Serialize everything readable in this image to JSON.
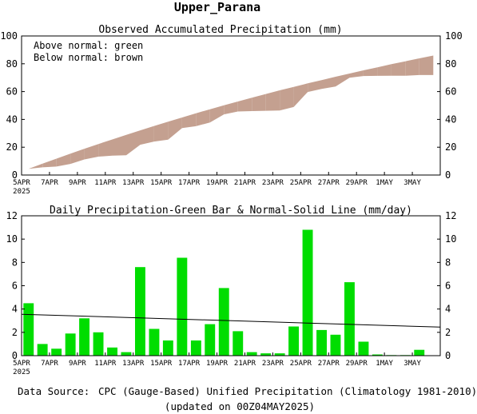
{
  "main_title": "Upper_Parana",
  "footer": {
    "source_label": "Data Source:",
    "source_text": "CPC (Gauge-Based) Unified Precipitation (Climatology 1981-2010)",
    "updated": "(updated on 00Z04MAY2025)"
  },
  "colors": {
    "above": "#00c000",
    "below": "#c4a090",
    "bar": "#00dd00",
    "source_label": "#e02020"
  },
  "chart_data": [
    {
      "type": "area",
      "title": "Observed Accumulated Precipitation (mm)",
      "legend": [
        "Above normal: green",
        "Below normal: brown"
      ],
      "ylim": [
        0,
        100
      ],
      "yticks": [
        0,
        20,
        40,
        60,
        80,
        100
      ],
      "xtick_labels": [
        "5APR",
        "7APR",
        "9APR",
        "11APR",
        "13APR",
        "15APR",
        "17APR",
        "19APR",
        "21APR",
        "23APR",
        "25APR",
        "27APR",
        "29APR",
        "1MAY",
        "3MAY"
      ],
      "xtick_sublabel": "2025",
      "series": [
        {
          "name": "observed",
          "values": [
            4.5,
            5.5,
            6.1,
            8.0,
            11.2,
            13.2,
            13.9,
            14.2,
            21.8,
            24.1,
            25.4,
            33.8,
            35.1,
            37.8,
            43.6,
            45.7,
            46.0,
            46.2,
            46.4,
            48.9,
            59.7,
            61.9,
            63.7,
            70.0,
            71.2,
            71.3,
            71.4,
            71.4,
            71.9,
            71.9
          ]
        },
        {
          "name": "normal",
          "values": [
            4.5,
            8.2,
            11.8,
            15.4,
            18.9,
            22.3,
            25.6,
            28.9,
            32.1,
            35.3,
            38.4,
            41.4,
            44.4,
            47.3,
            50.1,
            52.9,
            55.6,
            58.3,
            60.9,
            63.4,
            65.9,
            68.3,
            70.7,
            73.0,
            75.3,
            77.5,
            79.7,
            81.8,
            83.9,
            85.9
          ]
        }
      ]
    },
    {
      "type": "bar",
      "title": "Daily Precipitation-Green Bar & Normal-Solid Line (mm/day)",
      "ylim": [
        0,
        12
      ],
      "yticks": [
        0,
        2,
        4,
        6,
        8,
        10,
        12
      ],
      "xtick_labels": [
        "5APR",
        "7APR",
        "9APR",
        "11APR",
        "13APR",
        "15APR",
        "17APR",
        "19APR",
        "21APR",
        "23APR",
        "25APR",
        "27APR",
        "29APR",
        "1MAY",
        "3MAY"
      ],
      "xtick_sublabel": "2025",
      "values": [
        4.5,
        1.0,
        0.6,
        1.9,
        3.2,
        2.0,
        0.7,
        0.3,
        7.6,
        2.3,
        1.3,
        8.4,
        1.3,
        2.7,
        5.8,
        2.1,
        0.3,
        0.2,
        0.2,
        2.5,
        10.8,
        2.2,
        1.8,
        6.3,
        1.2,
        0.1,
        0.05,
        0.05,
        0.5,
        0.0
      ],
      "normal_line": [
        3.55,
        2.45
      ]
    }
  ]
}
